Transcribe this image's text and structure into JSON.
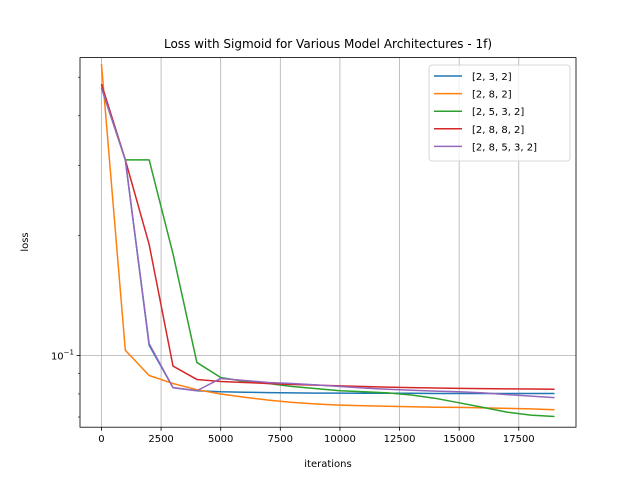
{
  "chart_data": {
    "type": "line",
    "title": "Loss with Sigmoid for Various Model Architectures - 1f)",
    "xlabel": "iterations",
    "ylabel": "loss",
    "yscale": "log",
    "xlim": [
      -900,
      19900
    ],
    "ylim": [
      0.066,
      0.56
    ],
    "grid": "x-major and y-major (vertical lines at x ticks, horizontal line at 10^-1)",
    "legend_position": "top-right",
    "x_ticks": [
      0,
      2500,
      5000,
      7500,
      10000,
      12500,
      15000,
      17500
    ],
    "x_tick_labels": [
      "0",
      "2500",
      "5000",
      "7500",
      "10000",
      "12500",
      "15000",
      "17500"
    ],
    "y_ticks": [
      0.1
    ],
    "y_tick_labels": [
      "10−1"
    ],
    "x": [
      0,
      1000,
      2000,
      3000,
      4000,
      5000,
      6000,
      7000,
      8000,
      9000,
      10000,
      11000,
      12000,
      13000,
      14000,
      15000,
      16000,
      17000,
      18000,
      19000
    ],
    "series": [
      {
        "name": "[2, 3, 2]",
        "color": "#1f77b4",
        "values": [
          0.48,
          0.31,
          0.106,
          0.083,
          0.0815,
          0.081,
          0.0808,
          0.0806,
          0.0805,
          0.0804,
          0.0804,
          0.0803,
          0.0803,
          0.0803,
          0.0802,
          0.0802,
          0.0802,
          0.0802,
          0.0802,
          0.0802
        ]
      },
      {
        "name": "[2, 8, 2]",
        "color": "#ff7f0e",
        "values": [
          0.54,
          0.103,
          0.089,
          0.085,
          0.082,
          0.08,
          0.0785,
          0.0772,
          0.0762,
          0.0755,
          0.075,
          0.0747,
          0.0745,
          0.0743,
          0.0741,
          0.074,
          0.0738,
          0.0736,
          0.0734,
          0.073
        ]
      },
      {
        "name": "[2, 5, 3, 2]",
        "color": "#2ca02c",
        "values": [
          0.47,
          0.31,
          0.31,
          0.18,
          0.096,
          0.088,
          0.086,
          0.085,
          0.0835,
          0.0825,
          0.0815,
          0.081,
          0.0805,
          0.0795,
          0.078,
          0.076,
          0.074,
          0.072,
          0.0708,
          0.0702
        ]
      },
      {
        "name": "[2, 8, 8, 2]",
        "color": "#d62728",
        "values": [
          0.48,
          0.31,
          0.19,
          0.094,
          0.087,
          0.086,
          0.0855,
          0.085,
          0.0845,
          0.0842,
          0.0838,
          0.0835,
          0.0832,
          0.083,
          0.0828,
          0.0826,
          0.0825,
          0.0824,
          0.0823,
          0.0822
        ]
      },
      {
        "name": "[2, 8, 5, 3, 2]",
        "color": "#9467bd",
        "values": [
          0.47,
          0.31,
          0.107,
          0.083,
          0.0815,
          0.0875,
          0.0865,
          0.0855,
          0.085,
          0.0843,
          0.0835,
          0.0828,
          0.0822,
          0.0817,
          0.0813,
          0.081,
          0.0805,
          0.0797,
          0.079,
          0.0783
        ]
      }
    ]
  }
}
